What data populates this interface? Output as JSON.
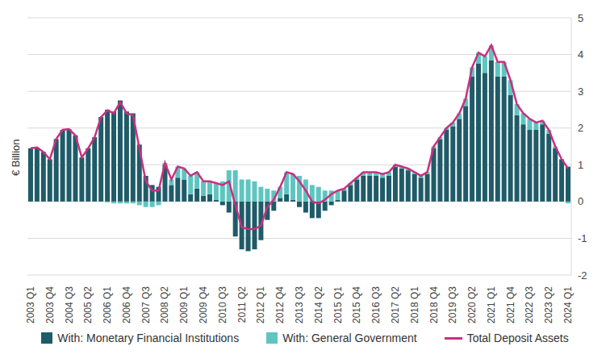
{
  "chart_data": {
    "type": "bar",
    "stacked": true,
    "y_label": "€ Billion",
    "grid": true,
    "legend": "bottom",
    "categories": [
      "2003 Q1",
      null,
      null,
      "2003 Q4",
      null,
      null,
      "2004 Q3",
      null,
      null,
      "2005 Q2",
      null,
      null,
      "2006 Q1",
      null,
      null,
      "2006 Q4",
      null,
      null,
      "2007 Q3",
      null,
      null,
      "2008 Q2",
      null,
      null,
      "2009 Q1",
      null,
      null,
      "2009 Q4",
      null,
      null,
      "2010 Q3",
      null,
      null,
      "2011 Q2",
      null,
      null,
      "2012 Q1",
      null,
      null,
      "2012 Q4",
      null,
      null,
      "2013 Q3",
      null,
      null,
      "2014 Q2",
      null,
      null,
      "2015 Q1",
      null,
      null,
      "2015 Q4",
      null,
      null,
      "2016 Q3",
      null,
      null,
      "2017 Q2",
      null,
      null,
      "2018 Q1",
      null,
      null,
      "2018 Q4",
      null,
      null,
      "2019 Q3",
      null,
      null,
      "2020 Q2",
      null,
      null,
      "2021 Q1",
      null,
      null,
      "2021 Q4",
      null,
      null,
      "2022 Q3",
      null,
      null,
      "2023 Q2",
      null,
      null,
      "2024 Q1"
    ],
    "series": [
      {
        "name": "With: Monetary Financial Institutions",
        "color": "#1f5b68",
        "values": [
          1.45,
          1.47,
          1.35,
          1.15,
          1.7,
          1.95,
          1.97,
          1.8,
          1.2,
          1.45,
          1.75,
          2.3,
          2.5,
          2.45,
          2.75,
          2.45,
          2.4,
          1.55,
          0.7,
          0.45,
          0.4,
          1.0,
          0.45,
          0.65,
          0.6,
          0.2,
          0.35,
          0.15,
          0.2,
          0.05,
          -0.1,
          -0.3,
          -0.95,
          -1.3,
          -1.35,
          -1.3,
          -1.05,
          -0.5,
          -0.25,
          0.1,
          0.2,
          0.05,
          -0.15,
          -0.3,
          -0.45,
          -0.45,
          -0.25,
          -0.1,
          0.05,
          0.3,
          0.45,
          0.6,
          0.7,
          0.7,
          0.7,
          0.65,
          0.7,
          0.95,
          0.9,
          0.85,
          0.75,
          0.65,
          0.75,
          1.45,
          1.7,
          1.95,
          2.05,
          2.25,
          2.6,
          3.4,
          3.75,
          3.5,
          3.85,
          3.4,
          3.4,
          2.9,
          2.35,
          2.1,
          1.95,
          1.95,
          2.1,
          1.85,
          1.45,
          1.15,
          0.95
        ]
      },
      {
        "name": "With: General Government",
        "color": "#5ec5c1",
        "values": [
          0,
          0,
          0,
          0,
          0,
          0,
          0,
          0,
          0,
          0,
          0,
          0,
          -0.02,
          -0.05,
          -0.05,
          -0.05,
          -0.05,
          -0.1,
          -0.15,
          -0.15,
          -0.1,
          0.05,
          0.15,
          0.3,
          0.3,
          0.5,
          0.45,
          0.4,
          0.35,
          0.45,
          0.55,
          0.85,
          0.85,
          0.6,
          0.6,
          0.55,
          0.4,
          0.35,
          0.3,
          0.3,
          0.6,
          0.7,
          0.7,
          0.6,
          0.45,
          0.4,
          0.3,
          0.3,
          0.25,
          0.05,
          0.05,
          0.05,
          0.1,
          0.1,
          0.1,
          0.1,
          0.1,
          0.05,
          0.05,
          0.05,
          0.05,
          0.05,
          0.05,
          0.05,
          0.05,
          0.05,
          0.1,
          0.15,
          0.2,
          0.25,
          0.3,
          0.45,
          0.4,
          0.4,
          0.4,
          0.4,
          0.3,
          0.3,
          0.3,
          0.2,
          0.1,
          0.1,
          0.05,
          0,
          -0.05
        ]
      },
      {
        "name": "Total Deposit Assets",
        "type": "line",
        "color": "#c8307f",
        "values": [
          1.45,
          1.47,
          1.35,
          1.15,
          1.7,
          1.95,
          1.97,
          1.8,
          1.2,
          1.45,
          1.75,
          2.3,
          2.48,
          2.4,
          2.7,
          2.4,
          2.35,
          1.45,
          0.55,
          0.3,
          0.3,
          1.05,
          0.6,
          0.95,
          0.9,
          0.7,
          0.8,
          0.55,
          0.55,
          0.5,
          0.45,
          0.55,
          -0.1,
          -0.7,
          -0.75,
          -0.75,
          -0.65,
          -0.15,
          0.05,
          0.4,
          0.8,
          0.75,
          0.55,
          0.3,
          0,
          -0.05,
          0.05,
          0.2,
          0.3,
          0.35,
          0.5,
          0.65,
          0.8,
          0.8,
          0.8,
          0.75,
          0.8,
          1.0,
          0.95,
          0.9,
          0.8,
          0.7,
          0.8,
          1.5,
          1.75,
          2.0,
          2.15,
          2.4,
          2.8,
          3.65,
          4.05,
          3.95,
          4.25,
          3.8,
          3.8,
          3.3,
          2.65,
          2.4,
          2.25,
          2.15,
          2.2,
          1.95,
          1.5,
          1.15,
          0.9
        ]
      }
    ],
    "ylim": [
      -2,
      5
    ],
    "yticks": [
      -2,
      -1,
      0,
      1,
      2,
      3,
      4,
      5
    ]
  }
}
